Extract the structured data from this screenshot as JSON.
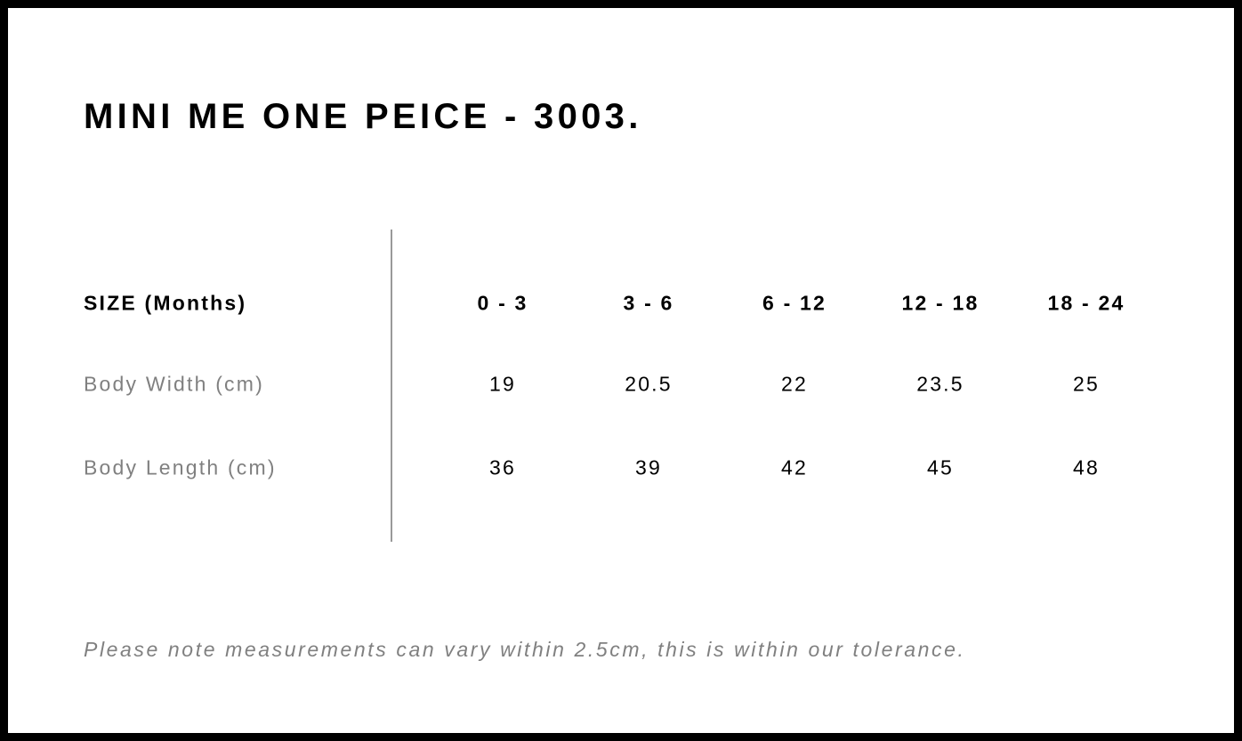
{
  "title": "MINI ME ONE PEICE - 3003.",
  "table": {
    "header_label": "SIZE (Months)",
    "sizes": [
      "0 - 3",
      "3 - 6",
      "6 - 12",
      "12 - 18",
      "18 - 24"
    ],
    "rows": [
      {
        "label": "Body Width (cm)",
        "values": [
          "19",
          "20.5",
          "22",
          "23.5",
          "25"
        ]
      },
      {
        "label": "Body Length (cm)",
        "values": [
          "36",
          "39",
          "42",
          "45",
          "48"
        ]
      }
    ]
  },
  "note": "Please note measurements can vary within 2.5cm, this is within our tolerance."
}
